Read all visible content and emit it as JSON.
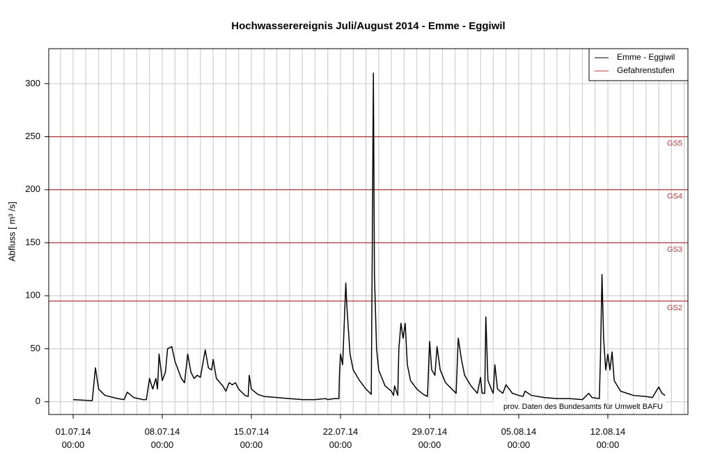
{
  "chart_data": {
    "type": "line",
    "title": "Hochwasserereignis Juli/August 2014 - Emme - Eggiwil",
    "ylabel": "Abfluss [ m³ /s]",
    "annotation": "prov. Daten des Bundesamts für Umwelt BAFU",
    "xlim": [
      "29.06.14 02:00",
      "18.08.14 07:00"
    ],
    "ylim": [
      -12,
      333
    ],
    "yticks": [
      0,
      50,
      100,
      150,
      200,
      250,
      300
    ],
    "xticks": [
      {
        "value": "01.07.14 00:00",
        "label": "01.07.14\n00:00"
      },
      {
        "value": "08.07.14 00:00",
        "label": "08.07.14\n00:00"
      },
      {
        "value": "15.07.14 00:00",
        "label": "15.07.14\n00:00"
      },
      {
        "value": "22.07.14 00:00",
        "label": "22.07.14\n00:00"
      },
      {
        "value": "29.07.14 00:00",
        "label": "29.07.14\n00:00"
      },
      {
        "value": "05.08.14 00:00",
        "label": "05.08.14\n00:00"
      },
      {
        "value": "12.08.14 00:00",
        "label": "12.08.14\n00:00"
      }
    ],
    "grid": true,
    "legend": "top-right",
    "hline_name": "Gefahrenstufen",
    "hline_color": "#b03a3a",
    "hlines": [
      {
        "value": 95,
        "label": "GS2"
      },
      {
        "value": 150,
        "label": "GS3"
      },
      {
        "value": 200,
        "label": "GS4"
      },
      {
        "value": 250,
        "label": "GS5"
      }
    ],
    "series": [
      {
        "name": "Emme - Eggiwil",
        "color": "#000000",
        "x": [
          "01.07.14 00:00",
          "02.07.14 12:00",
          "02.07.14 18:00",
          "03.07.14 00:00",
          "03.07.14 12:00",
          "04.07.14 12:00",
          "05.07.14 00:00",
          "05.07.14 06:00",
          "05.07.14 18:00",
          "06.07.14 12:00",
          "06.07.14 18:00",
          "07.07.14 00:00",
          "07.07.14 06:00",
          "07.07.14 12:00",
          "07.07.14 15:00",
          "07.07.14 18:00",
          "08.07.14 00:00",
          "08.07.14 06:00",
          "08.07.14 10:00",
          "08.07.14 18:00",
          "09.07.14 00:00",
          "09.07.14 06:00",
          "09.07.14 12:00",
          "09.07.14 18:00",
          "10.07.14 00:00",
          "10.07.14 06:00",
          "10.07.14 12:00",
          "10.07.14 18:00",
          "11.07.14 00:00",
          "11.07.14 09:00",
          "11.07.14 15:00",
          "11.07.14 21:00",
          "12.07.14 00:00",
          "12.07.14 06:00",
          "12.07.14 18:00",
          "13.07.14 00:00",
          "13.07.14 06:00",
          "13.07.14 12:00",
          "13.07.14 18:00",
          "14.07.14 00:00",
          "14.07.14 12:00",
          "14.07.14 18:00",
          "14.07.14 20:00",
          "15.07.14 00:00",
          "15.07.14 12:00",
          "16.07.14 00:00",
          "17.07.14 00:00",
          "18.07.14 00:00",
          "19.07.14 00:00",
          "20.07.14 00:00",
          "20.07.14 20:00",
          "21.07.14 00:00",
          "21.07.14 12:00",
          "21.07.14 21:00",
          "21.07.14 22:00",
          "22.07.14 00:00",
          "22.07.14 04:00",
          "22.07.14 06:00",
          "22.07.14 10:00",
          "22.07.14 12:00",
          "22.07.14 18:00",
          "23.07.14 00:00",
          "23.07.14 12:00",
          "24.07.14 00:00",
          "24.07.14 10:00",
          "24.07.14 12:00",
          "24.07.14 14:00",
          "24.07.14 16:00",
          "24.07.14 20:00",
          "25.07.14 00:00",
          "25.07.14 12:00",
          "26.07.14 00:00",
          "26.07.14 04:00",
          "26.07.14 06:00",
          "26.07.14 12:00",
          "26.07.14 14:00",
          "26.07.14 18:00",
          "26.07.14 22:00",
          "27.07.14 02:00",
          "27.07.14 06:00",
          "27.07.14 12:00",
          "28.07.14 00:00",
          "28.07.14 12:00",
          "28.07.14 20:00",
          "29.07.14 00:00",
          "29.07.14 04:00",
          "29.07.14 10:00",
          "29.07.14 14:00",
          "29.07.14 20:00",
          "30.07.14 06:00",
          "30.07.14 18:00",
          "31.07.14 02:00",
          "31.07.14 06:00",
          "31.07.14 12:00",
          "31.07.14 18:00",
          "01.08.14 06:00",
          "01.08.14 18:00",
          "02.08.14 00:00",
          "02.08.14 03:00",
          "02.08.14 08:00",
          "02.08.14 10:00",
          "02.08.14 14:00",
          "02.08.14 22:00",
          "03.08.14 00:00",
          "03.08.14 03:00",
          "03.08.14 08:00",
          "03.08.14 18:00",
          "04.08.14 00:00",
          "04.08.14 12:00",
          "05.08.14 00:00",
          "05.08.14 08:00",
          "05.08.14 12:00",
          "06.08.14 00:00",
          "07.08.14 00:00",
          "08.08.14 00:00",
          "09.08.14 00:00",
          "10.08.14 00:00",
          "10.08.14 12:00",
          "10.08.14 18:00",
          "11.08.14 08:00",
          "11.08.14 10:00",
          "11.08.14 13:00",
          "11.08.14 16:00",
          "11.08.14 20:00",
          "12.08.14 00:00",
          "12.08.14 04:00",
          "12.08.14 08:00",
          "12.08.14 12:00",
          "13.08.14 00:00",
          "13.08.14 12:00",
          "14.08.14 00:00",
          "15.08.14 00:00",
          "15.08.14 12:00",
          "16.08.14 00:00",
          "16.08.14 06:00",
          "16.08.14 12:00"
        ],
        "values": [
          2,
          1,
          32,
          12,
          6,
          3,
          2,
          9,
          4,
          2,
          2,
          22,
          12,
          22,
          12,
          45,
          20,
          28,
          50,
          52,
          38,
          30,
          22,
          18,
          45,
          28,
          22,
          25,
          23,
          49,
          32,
          30,
          40,
          22,
          15,
          10,
          18,
          16,
          18,
          12,
          6,
          5,
          25,
          12,
          7,
          5,
          4,
          3,
          2,
          2,
          3,
          2,
          3,
          3,
          25,
          45,
          35,
          60,
          112,
          90,
          45,
          30,
          20,
          12,
          7,
          150,
          310,
          120,
          50,
          30,
          15,
          10,
          6,
          15,
          6,
          50,
          74,
          60,
          74,
          35,
          20,
          12,
          7,
          5,
          57,
          30,
          25,
          52,
          30,
          18,
          12,
          8,
          60,
          40,
          25,
          15,
          8,
          23,
          8,
          8,
          80,
          20,
          10,
          8,
          35,
          12,
          8,
          16,
          8,
          6,
          5,
          10,
          6,
          4,
          3,
          3,
          2,
          8,
          4,
          3,
          40,
          120,
          60,
          30,
          45,
          30,
          47,
          20,
          10,
          8,
          6,
          5,
          4,
          14,
          8,
          6
        ]
      }
    ]
  }
}
